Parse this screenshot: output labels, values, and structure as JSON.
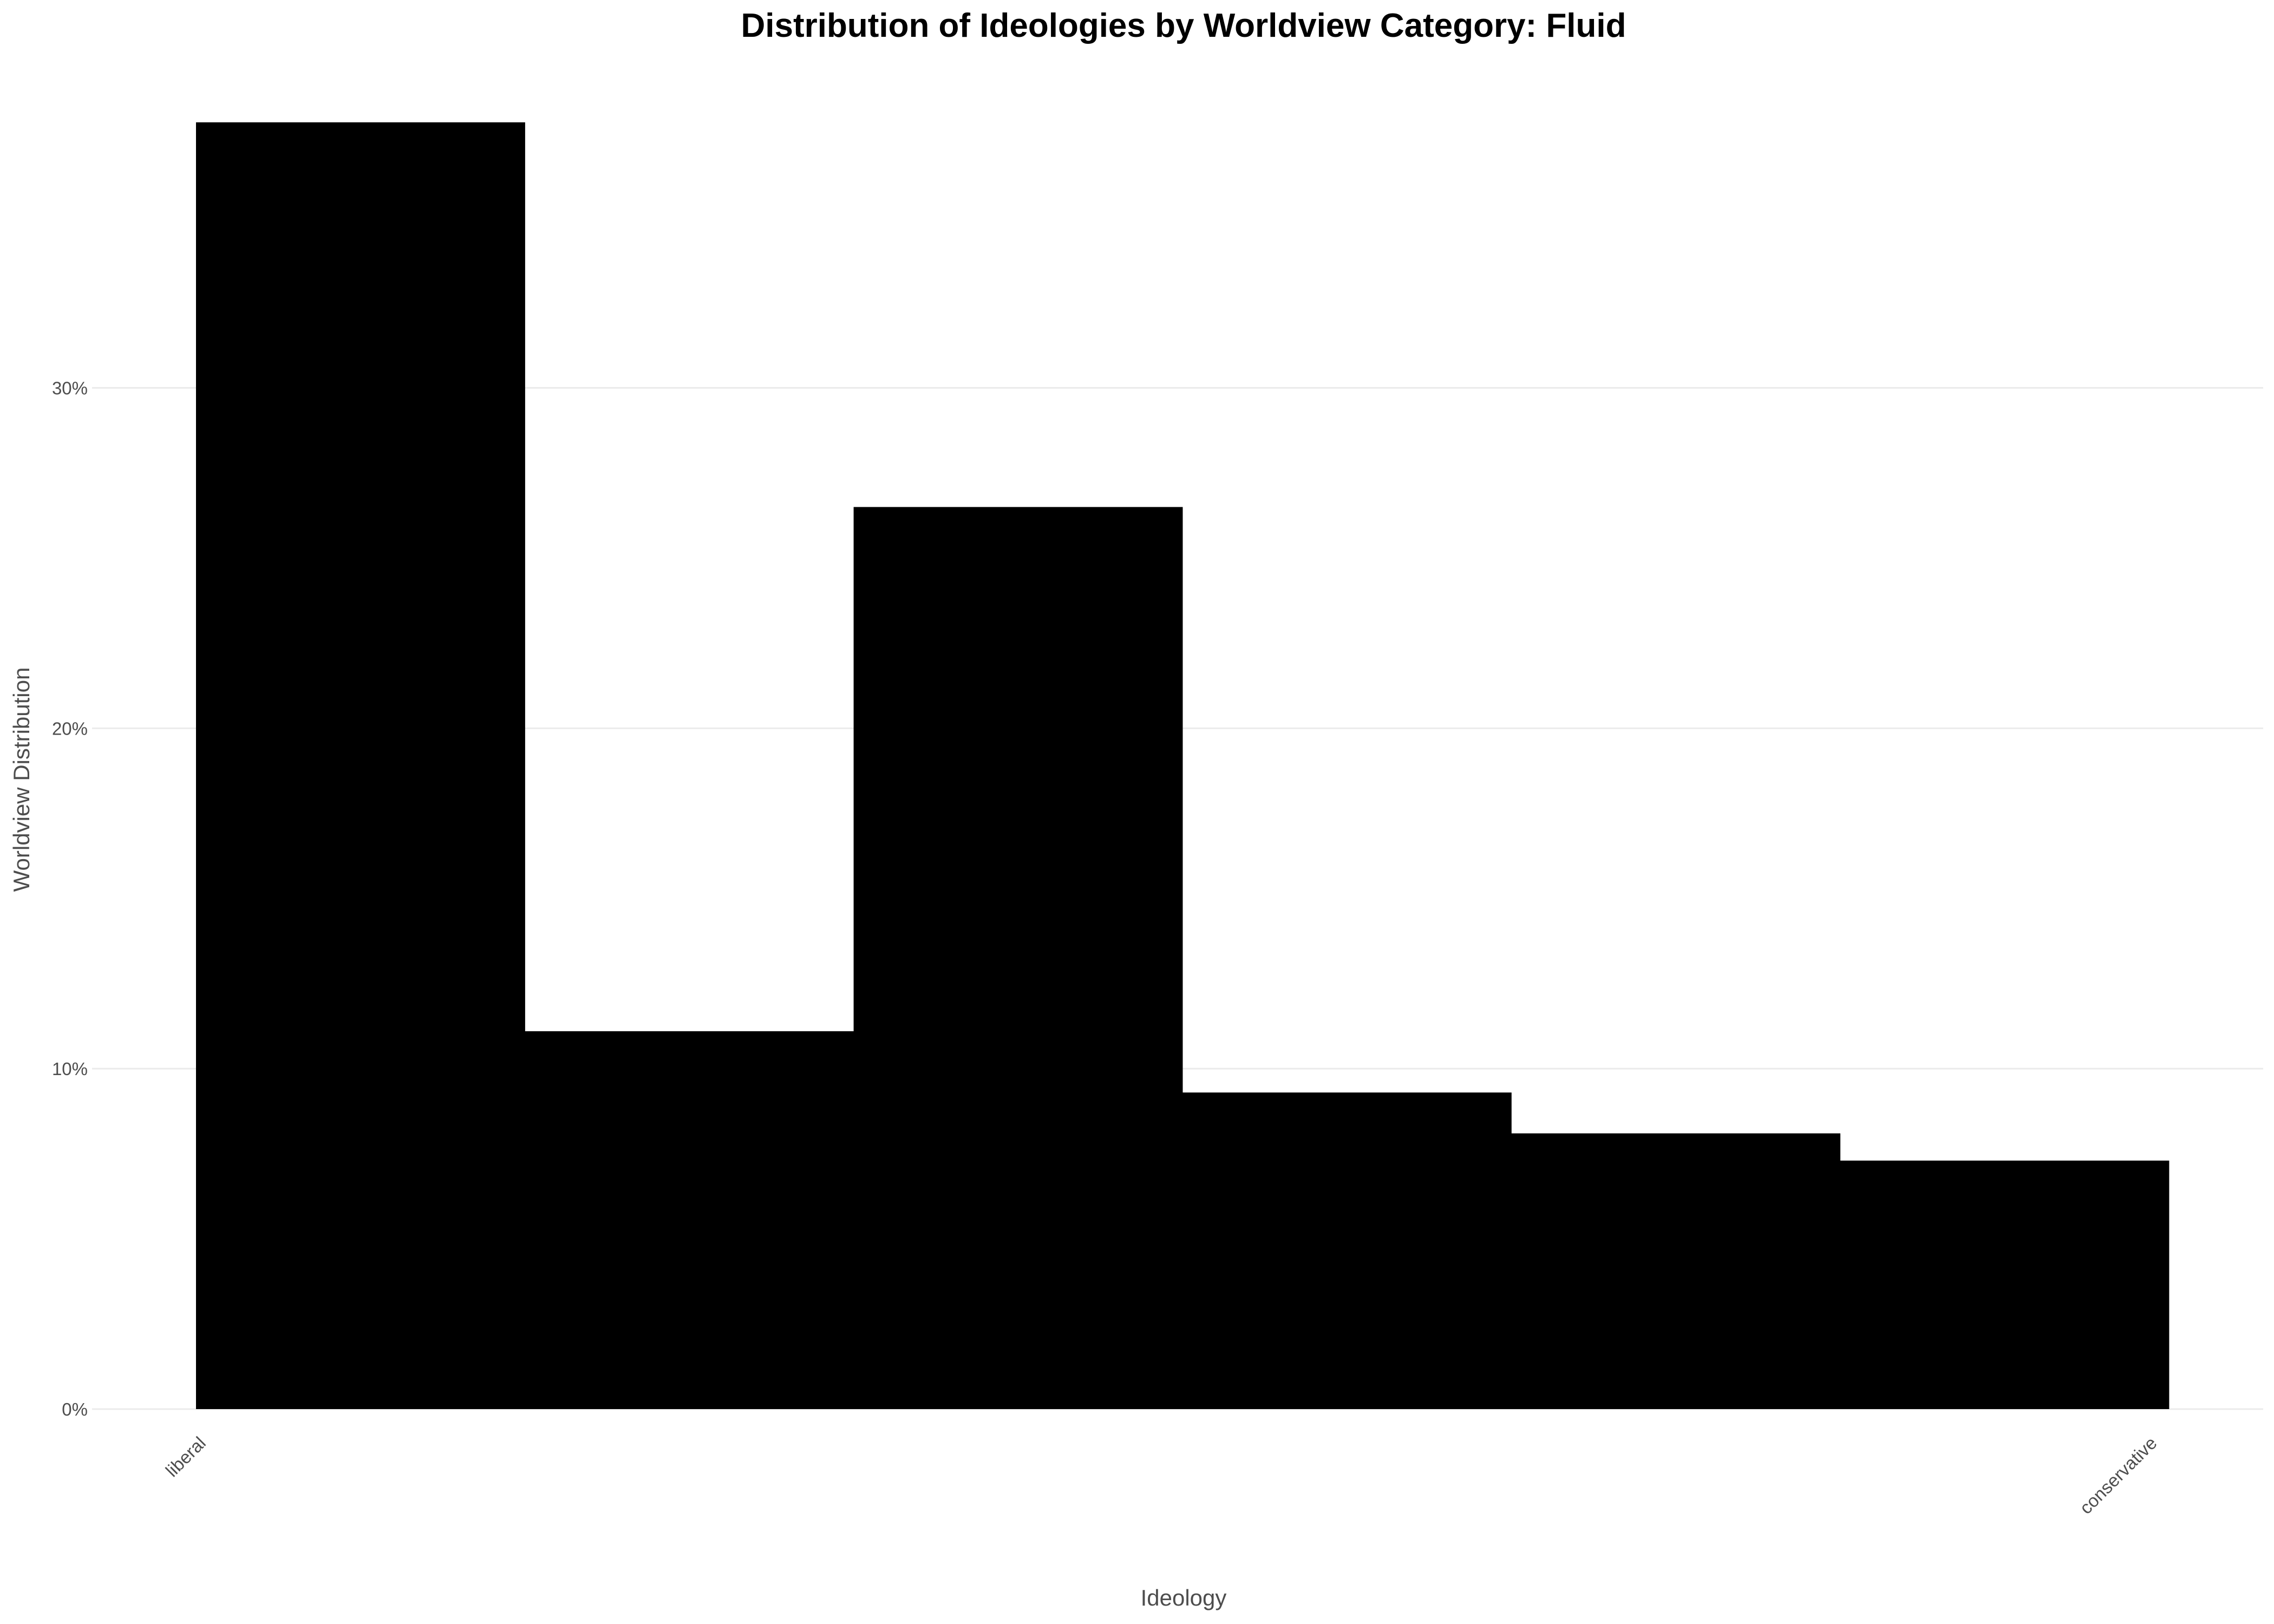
{
  "chart_data": {
    "type": "bar",
    "title": "Distribution of Ideologies by Worldview Category: Fluid",
    "xlabel": "Ideology",
    "ylabel": "Worldview Distribution",
    "categories": [
      "liberal",
      "",
      "",
      "",
      "",
      "conservative"
    ],
    "x_tick_labels": [
      "liberal",
      "conservative"
    ],
    "values": [
      37.8,
      11.1,
      26.5,
      9.3,
      8.1,
      7.3
    ],
    "value_unit": "%",
    "ylim": [
      0,
      37.8
    ],
    "y_ticks": [
      0,
      10,
      20,
      30
    ],
    "y_tick_labels": [
      "0%",
      "10%",
      "20%",
      "30%"
    ],
    "bar_color": "#000000",
    "grid": true,
    "legend": "none"
  }
}
